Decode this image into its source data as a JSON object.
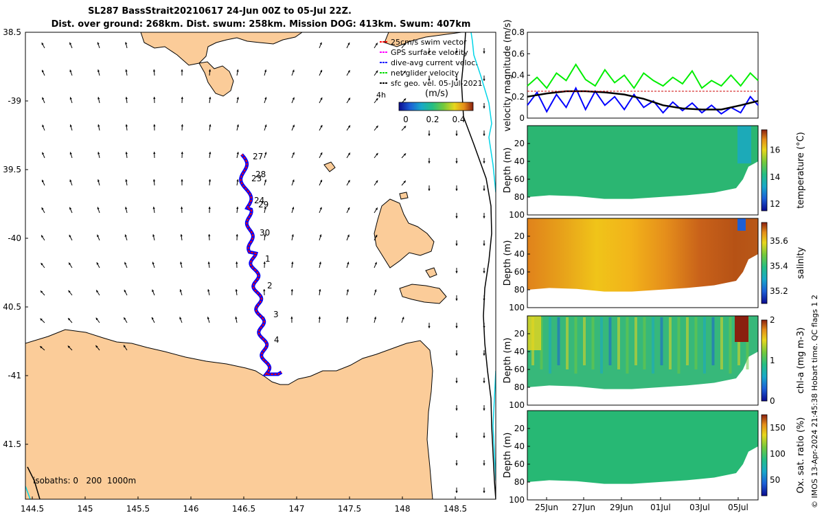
{
  "figure": {
    "title_line1": "SL287 BassStrait20210617 24-Jun 00Z to 05-Jul 22Z.",
    "title_line2": "Dist. over ground: 268km. Dist. swum: 258km. Mission DOG: 413km. Swum: 407km",
    "footer": "© IMOS 13-Apr-2024 21:45:38 Hobart time. QC flags 1  2"
  },
  "map": {
    "legend": [
      {
        "label": "25cm/s swim vector",
        "color": "#ff0000"
      },
      {
        "label": "GPS surface velocity",
        "color": "#ff00ff"
      },
      {
        "label": "dive-avg current veloc.",
        "color": "#0000ff"
      },
      {
        "label": "net glider velocity",
        "color": "#00dd00"
      },
      {
        "label": "sfc geo. vel. 05-Jul-2021",
        "color": "#000000"
      }
    ],
    "legend_extra": "4h",
    "colorbar_unit": "(m/s)",
    "colorbar_ticks": [
      "0",
      "0.2",
      "0.4"
    ],
    "isobaths_label": "isobaths: 0   200  1000m",
    "lon_ticks": [
      "144.5",
      "145",
      "145.5",
      "146",
      "146.5",
      "147",
      "147.5",
      "148",
      "148.5"
    ],
    "lat_ticks": [
      "38.5",
      "-39",
      "39.5",
      "-40",
      "40.5",
      "-41",
      "41.5"
    ],
    "lon_range": [
      144.5,
      148.9
    ],
    "lat_range": [
      -38.5,
      -41.9
    ],
    "day_labels": [
      "27",
      "28",
      "23",
      "24",
      "29",
      "30",
      "1",
      "2",
      "3",
      "4"
    ],
    "land_color": "#fbcc99",
    "track_colors": {
      "red": "#ff0000",
      "blue": "#0000ff"
    }
  },
  "chart_data": [
    {
      "type": "line",
      "ylabel": "velocity magnitude (m/s)",
      "ylim": [
        0,
        0.8
      ],
      "y_ticks": [
        "0",
        "0.2",
        "0.4",
        "0.6",
        "0.8"
      ],
      "x_range_days": [
        0,
        11.9
      ],
      "series": [
        {
          "color": "#00ee00",
          "x": [
            0,
            0.5,
            1,
            1.5,
            2,
            2.5,
            3,
            3.5,
            4,
            4.5,
            5,
            5.5,
            6,
            6.5,
            7,
            7.5,
            8,
            8.5,
            9,
            9.5,
            10,
            10.5,
            11,
            11.5,
            11.9
          ],
          "y": [
            0.3,
            0.38,
            0.28,
            0.42,
            0.35,
            0.5,
            0.36,
            0.3,
            0.45,
            0.33,
            0.4,
            0.28,
            0.42,
            0.35,
            0.3,
            0.38,
            0.32,
            0.44,
            0.28,
            0.35,
            0.3,
            0.4,
            0.3,
            0.42,
            0.35
          ]
        },
        {
          "color": "#0000ff",
          "x": [
            0,
            0.5,
            1,
            1.5,
            2,
            2.5,
            3,
            3.5,
            4,
            4.5,
            5,
            5.5,
            6,
            6.5,
            7,
            7.5,
            8,
            8.5,
            9,
            9.5,
            10,
            10.5,
            11,
            11.5,
            11.9
          ],
          "y": [
            0.12,
            0.24,
            0.06,
            0.22,
            0.1,
            0.28,
            0.08,
            0.25,
            0.12,
            0.2,
            0.08,
            0.22,
            0.1,
            0.16,
            0.05,
            0.15,
            0.07,
            0.14,
            0.05,
            0.12,
            0.04,
            0.1,
            0.05,
            0.2,
            0.12
          ]
        },
        {
          "color": "#000000",
          "x": [
            0,
            1,
            2,
            3,
            4,
            5,
            6,
            7,
            8,
            9,
            10,
            11,
            11.9
          ],
          "y": [
            0.2,
            0.23,
            0.25,
            0.25,
            0.24,
            0.22,
            0.18,
            0.12,
            0.09,
            0.08,
            0.08,
            0.12,
            0.16
          ]
        },
        {
          "color": "#cc0000",
          "x": [
            0,
            11.9
          ],
          "y": [
            0.25,
            0.25
          ]
        }
      ]
    },
    {
      "type": "heatmap",
      "variable": "temperature",
      "cbar_label": "temperature (°C)",
      "cbar_ticks": [
        "12",
        "14",
        "16"
      ],
      "clim": [
        11.5,
        17.5
      ],
      "ylabel": "Depth (m)",
      "y_ticks": [
        "20",
        "40",
        "60",
        "80",
        "100"
      ],
      "ylim": [
        0,
        100
      ],
      "dominant_value": 14.4
    },
    {
      "type": "heatmap",
      "variable": "salinity",
      "cbar_label": "salinity",
      "cbar_ticks": [
        "35.2",
        "35.4",
        "35.6"
      ],
      "clim": [
        35.1,
        35.75
      ],
      "ylabel": "Depth (m)",
      "y_ticks": [
        "20",
        "40",
        "60",
        "80",
        "100"
      ],
      "ylim": [
        0,
        100
      ],
      "trend": [
        35.62,
        35.56,
        35.52,
        35.5,
        35.52,
        35.55,
        35.6,
        35.66,
        35.7,
        35.71,
        35.72,
        35.4
      ]
    },
    {
      "type": "heatmap",
      "variable": "chl-a",
      "cbar_label": "chl-a (mg m-3)",
      "cbar_ticks": [
        "0",
        "1",
        "2"
      ],
      "clim": [
        0,
        2
      ],
      "ylabel": "Depth (m)",
      "y_ticks": [
        "20",
        "40",
        "60",
        "80",
        "100"
      ],
      "ylim": [
        0,
        100
      ],
      "dominant_value": 0.9
    },
    {
      "type": "heatmap",
      "variable": "oxygen saturation",
      "cbar_label": "Ox. sat. ratio (%)",
      "cbar_ticks": [
        "50",
        "100",
        "150"
      ],
      "clim": [
        20,
        175
      ],
      "ylabel": "Depth (m)",
      "y_ticks": [
        "20",
        "40",
        "60",
        "80",
        "100"
      ],
      "ylim": [
        0,
        100
      ],
      "dominant_value": 100,
      "x_ticks": [
        "25Jun",
        "27Jun",
        "29Jun",
        "01Jul",
        "03Jul",
        "05Jul"
      ]
    }
  ]
}
